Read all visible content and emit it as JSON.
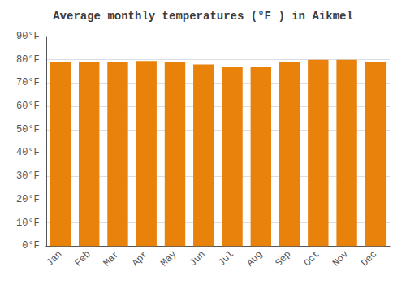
{
  "chart_data": {
    "type": "bar",
    "title": "Average monthly temperatures (°F ) in Aikmel",
    "categories": [
      "Jan",
      "Feb",
      "Mar",
      "Apr",
      "May",
      "Jun",
      "Jul",
      "Aug",
      "Sep",
      "Oct",
      "Nov",
      "Dec"
    ],
    "values": [
      79,
      79,
      79,
      79.5,
      79,
      78,
      77,
      77,
      79,
      80,
      80,
      79
    ],
    "color": "#E8820A",
    "ylim": [
      0,
      90
    ],
    "yticks": [
      {
        "value": 0,
        "label": "0°F"
      },
      {
        "value": 10,
        "label": "10°F"
      },
      {
        "value": 20,
        "label": "20°F"
      },
      {
        "value": 30,
        "label": "30°F"
      },
      {
        "value": 40,
        "label": "40°F"
      },
      {
        "value": 50,
        "label": "50°F"
      },
      {
        "value": 60,
        "label": "60°F"
      },
      {
        "value": 70,
        "label": "70°F"
      },
      {
        "value": 80,
        "label": "80°F"
      },
      {
        "value": 90,
        "label": "90°F"
      }
    ],
    "grid": true
  }
}
